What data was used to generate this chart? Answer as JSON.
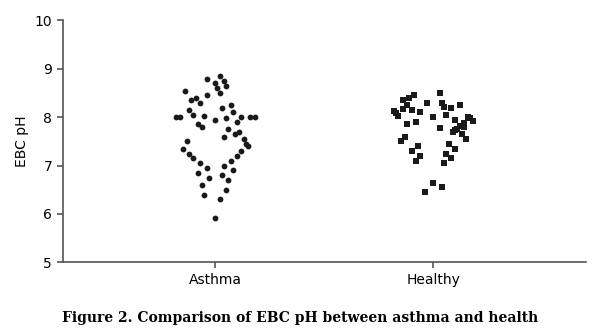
{
  "title": "Figure 2. Comparison of EBC pH between asthma and health",
  "ylabel": "EBC pH",
  "ylim": [
    5,
    10
  ],
  "yticks": [
    5,
    6,
    7,
    8,
    9,
    10
  ],
  "xlim": [
    0.3,
    2.7
  ],
  "xtick_labels": [
    "Asthma",
    "Healthy"
  ],
  "xtick_positions": [
    1,
    2
  ],
  "background_color": "#ffffff",
  "asthma_points": [
    7.95,
    7.98,
    8.02,
    7.9,
    8.05,
    8.1,
    7.85,
    8.0,
    8.15,
    8.2,
    7.75,
    7.8,
    8.25,
    8.3,
    7.7,
    8.35,
    7.65,
    8.4,
    7.6,
    8.45,
    7.55,
    7.5,
    8.5,
    7.45,
    8.55,
    7.4,
    7.35,
    8.6,
    7.3,
    7.25,
    8.65,
    7.2,
    7.15,
    7.1,
    7.05,
    7.0,
    6.95,
    6.9,
    6.85,
    6.8,
    6.75,
    6.7,
    6.6,
    6.5,
    6.4,
    6.3,
    8.7,
    8.75,
    8.8,
    8.85,
    5.92,
    8.0,
    8.0,
    8.0,
    8.0
  ],
  "asthma_x_offsets": [
    0.0,
    0.05,
    -0.05,
    0.1,
    -0.1,
    0.08,
    -0.08,
    0.12,
    -0.12,
    0.03,
    0.06,
    -0.06,
    0.07,
    -0.07,
    0.11,
    -0.11,
    0.09,
    -0.09,
    0.04,
    -0.04,
    0.13,
    -0.13,
    0.02,
    0.14,
    -0.14,
    0.15,
    -0.15,
    0.01,
    0.12,
    -0.12,
    0.05,
    0.1,
    -0.1,
    0.07,
    -0.07,
    0.04,
    -0.04,
    0.08,
    -0.08,
    0.03,
    -0.03,
    0.06,
    -0.06,
    0.05,
    -0.05,
    0.02,
    0.0,
    0.04,
    -0.04,
    0.02,
    0.0,
    0.16,
    -0.16,
    0.18,
    -0.18
  ],
  "healthy_points": [
    8.0,
    8.05,
    8.1,
    7.95,
    8.15,
    8.2,
    7.9,
    8.25,
    7.85,
    8.3,
    7.8,
    8.35,
    7.75,
    8.4,
    7.7,
    8.45,
    7.65,
    7.6,
    8.5,
    7.55,
    7.5,
    7.45,
    7.4,
    7.35,
    7.3,
    7.25,
    7.2,
    7.15,
    7.1,
    7.05,
    8.0,
    8.02,
    7.98,
    8.08,
    7.92,
    8.12,
    7.88,
    8.18,
    8.22,
    7.82,
    8.26,
    7.78,
    8.3,
    7.74,
    6.65,
    6.55,
    6.45
  ],
  "healthy_x_offsets": [
    0.0,
    0.06,
    -0.06,
    0.1,
    -0.1,
    0.08,
    -0.08,
    0.12,
    -0.12,
    0.04,
    0.14,
    -0.14,
    0.11,
    -0.11,
    0.09,
    -0.09,
    0.13,
    -0.13,
    0.03,
    0.15,
    -0.15,
    0.07,
    -0.07,
    0.1,
    -0.1,
    0.06,
    -0.06,
    0.08,
    -0.08,
    0.05,
    0.16,
    -0.16,
    0.17,
    -0.17,
    0.18,
    -0.18,
    0.14,
    -0.14,
    0.05,
    0.12,
    -0.12,
    0.03,
    -0.03,
    0.1,
    0.0,
    0.04,
    -0.04
  ],
  "marker_color": "#1a1a1a",
  "marker_size": 5,
  "title_fontsize": 10,
  "axis_fontsize": 10,
  "tick_fontsize": 10
}
